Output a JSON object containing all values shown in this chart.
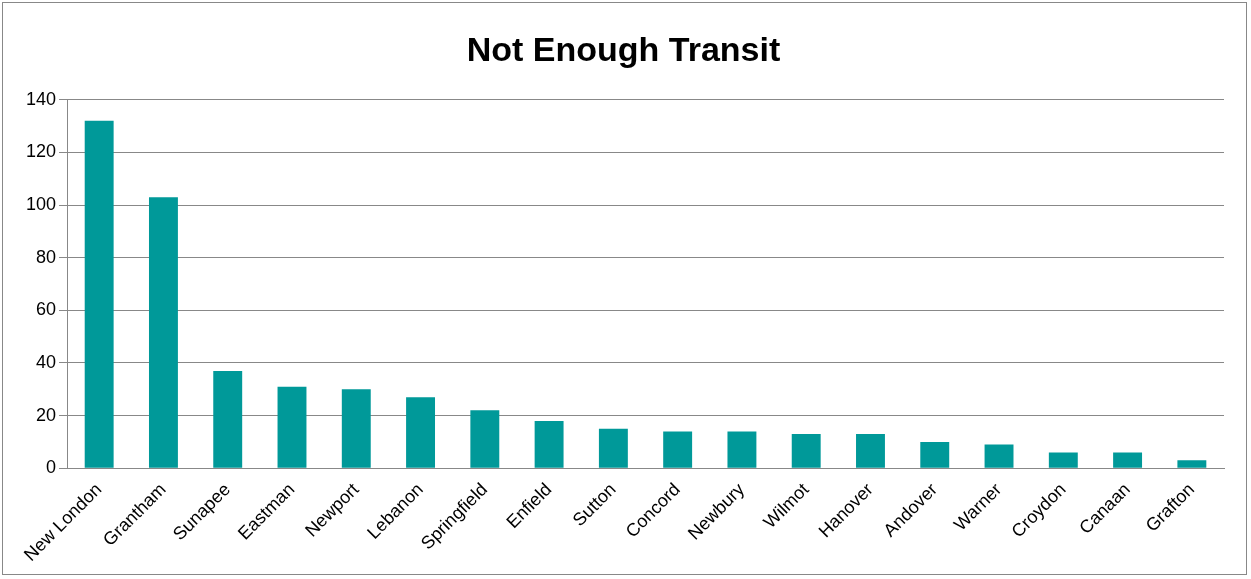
{
  "chart_data": {
    "type": "bar",
    "title": "Not Enough Transit",
    "categories": [
      "New London",
      "Grantham",
      "Sunapee",
      "Eastman",
      "Newport",
      "Lebanon",
      "Springfield",
      "Enfield",
      "Sutton",
      "Concord",
      "Newbury",
      "Wilmot",
      "Hanover",
      "Andover",
      "Warner",
      "Croydon",
      "Canaan",
      "Grafton"
    ],
    "values": [
      132,
      103,
      37,
      31,
      30,
      27,
      22,
      18,
      15,
      14,
      14,
      13,
      13,
      10,
      9,
      6,
      6,
      3
    ],
    "color": "#009999",
    "ylim": [
      0,
      140
    ],
    "yticks": [
      0,
      20,
      40,
      60,
      80,
      100,
      120,
      140
    ],
    "grid": "y",
    "legend": false
  }
}
